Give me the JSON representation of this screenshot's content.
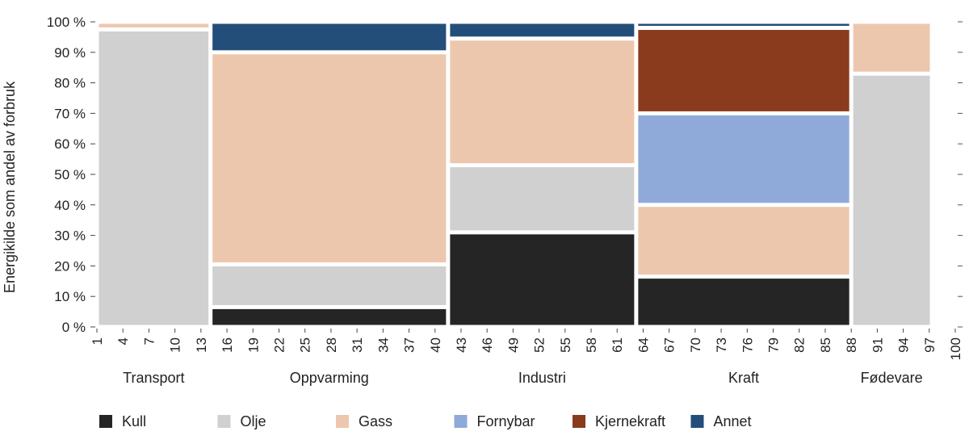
{
  "chart_data": {
    "type": "mosaic",
    "ylabel": "Energikilde som andel av forbruk",
    "ylim": [
      0,
      100
    ],
    "y_ticks": [
      "0 %",
      "10 %",
      "20 %",
      "30 %",
      "40 %",
      "50 %",
      "60 %",
      "70 %",
      "80 %",
      "90 %",
      "100 %"
    ],
    "xlim": [
      1,
      100
    ],
    "x_ticks": [
      1,
      4,
      7,
      10,
      13,
      16,
      19,
      22,
      25,
      28,
      31,
      34,
      37,
      40,
      43,
      46,
      49,
      52,
      55,
      58,
      61,
      64,
      67,
      70,
      73,
      76,
      79,
      82,
      85,
      88,
      91,
      94,
      97,
      100
    ],
    "legend": [
      {
        "key": "kull",
        "label": "Kull",
        "color": "#252525"
      },
      {
        "key": "olje",
        "label": "Olje",
        "color": "#d0d0d0"
      },
      {
        "key": "gass",
        "label": "Gass",
        "color": "#edc7ad"
      },
      {
        "key": "fornybar",
        "label": "Fornybar",
        "color": "#8faad8"
      },
      {
        "key": "kjernekraft",
        "label": "Kjernekraft",
        "color": "#8a3b1e"
      },
      {
        "key": "annet",
        "label": "Annet",
        "color": "#244e7a"
      }
    ],
    "sectors": [
      {
        "name": "Transport",
        "x_start": 1,
        "x_end": 14.1,
        "segments": [
          {
            "source": "olje",
            "from": 0,
            "to": 97.5
          },
          {
            "source": "gass",
            "from": 97.5,
            "to": 100
          }
        ]
      },
      {
        "name": "Oppvarming",
        "x_start": 14.1,
        "x_end": 41.5,
        "segments": [
          {
            "source": "kull",
            "from": 0,
            "to": 6.5
          },
          {
            "source": "olje",
            "from": 6.5,
            "to": 20.5
          },
          {
            "source": "gass",
            "from": 20.5,
            "to": 90
          },
          {
            "source": "annet",
            "from": 90,
            "to": 100
          }
        ]
      },
      {
        "name": "Industri",
        "x_start": 41.5,
        "x_end": 63.2,
        "segments": [
          {
            "source": "kull",
            "from": 0,
            "to": 31
          },
          {
            "source": "olje",
            "from": 31,
            "to": 53
          },
          {
            "source": "gass",
            "from": 53,
            "to": 94.5
          },
          {
            "source": "annet",
            "from": 94.5,
            "to": 100
          }
        ]
      },
      {
        "name": "Kraft",
        "x_start": 63.2,
        "x_end": 88,
        "segments": [
          {
            "source": "kull",
            "from": 0,
            "to": 16.5
          },
          {
            "source": "gass",
            "from": 16.5,
            "to": 40
          },
          {
            "source": "fornybar",
            "from": 40,
            "to": 70
          },
          {
            "source": "kjernekraft",
            "from": 70,
            "to": 98
          },
          {
            "source": "annet",
            "from": 98,
            "to": 100
          }
        ]
      },
      {
        "name": "Fødevare",
        "x_start": 88,
        "x_end": 97.3,
        "segments": [
          {
            "source": "olje",
            "from": 0,
            "to": 83
          },
          {
            "source": "gass",
            "from": 83,
            "to": 100
          }
        ]
      }
    ]
  }
}
